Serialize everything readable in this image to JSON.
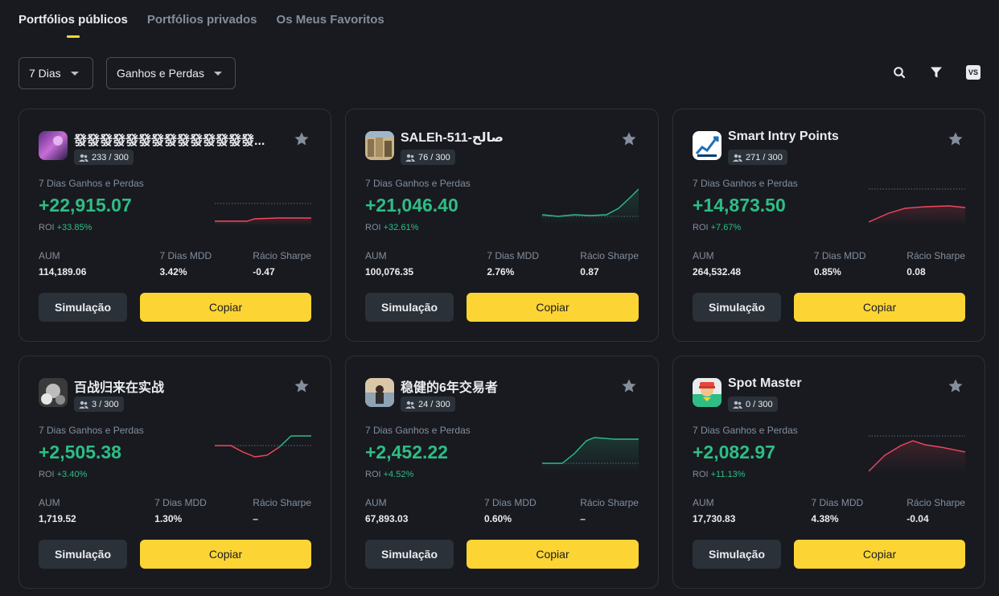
{
  "tabs": [
    "Portfólios públicos",
    "Portfólios privados",
    "Os Meus Favoritos"
  ],
  "filters": {
    "period": "7 Dias",
    "sort": "Ganhos e Perdas"
  },
  "tools": {
    "compare_label": "VS"
  },
  "labels": {
    "pnl": "7 Dias Ganhos e Perdas",
    "roi": "ROI",
    "aum": "AUM",
    "mdd": "7 Dias MDD",
    "sharpe": "Rácio Sharpe",
    "simulate": "Simulação",
    "copy": "Copiar"
  },
  "colors": {
    "accent": "#fcd535",
    "up": "#2ebd85",
    "down": "#f6465d"
  },
  "cards": [
    {
      "name": "發發發發發發發發發發發發發發...",
      "members": "233 / 300",
      "pnl": "+22,915.07",
      "roi": "+33.85%",
      "aum": "114,189.06",
      "mdd": "3.42%",
      "sharpe": "-0.47"
    },
    {
      "name": "SALEh-511-صالح",
      "members": "76 / 300",
      "pnl": "+21,046.40",
      "roi": "+32.61%",
      "aum": "100,076.35",
      "mdd": "2.76%",
      "sharpe": "0.87"
    },
    {
      "name": "Smart Intry Points",
      "members": "271 / 300",
      "pnl": "+14,873.50",
      "roi": "+7.67%",
      "aum": "264,532.48",
      "mdd": "0.85%",
      "sharpe": "0.08"
    },
    {
      "name": "百战归来在实战",
      "members": "3 / 300",
      "pnl": "+2,505.38",
      "roi": "+3.40%",
      "aum": "1,719.52",
      "mdd": "1.30%",
      "sharpe": "–"
    },
    {
      "name": "稳健的6年交易者",
      "members": "24 / 300",
      "pnl": "+2,452.22",
      "roi": "+4.52%",
      "aum": "67,893.03",
      "mdd": "0.60%",
      "sharpe": "–"
    },
    {
      "name": "Spot Master",
      "members": "0 / 300",
      "pnl": "+2,082.97",
      "roi": "+11.13%",
      "aum": "17,730.83",
      "mdd": "4.38%",
      "sharpe": "-0.04"
    }
  ]
}
